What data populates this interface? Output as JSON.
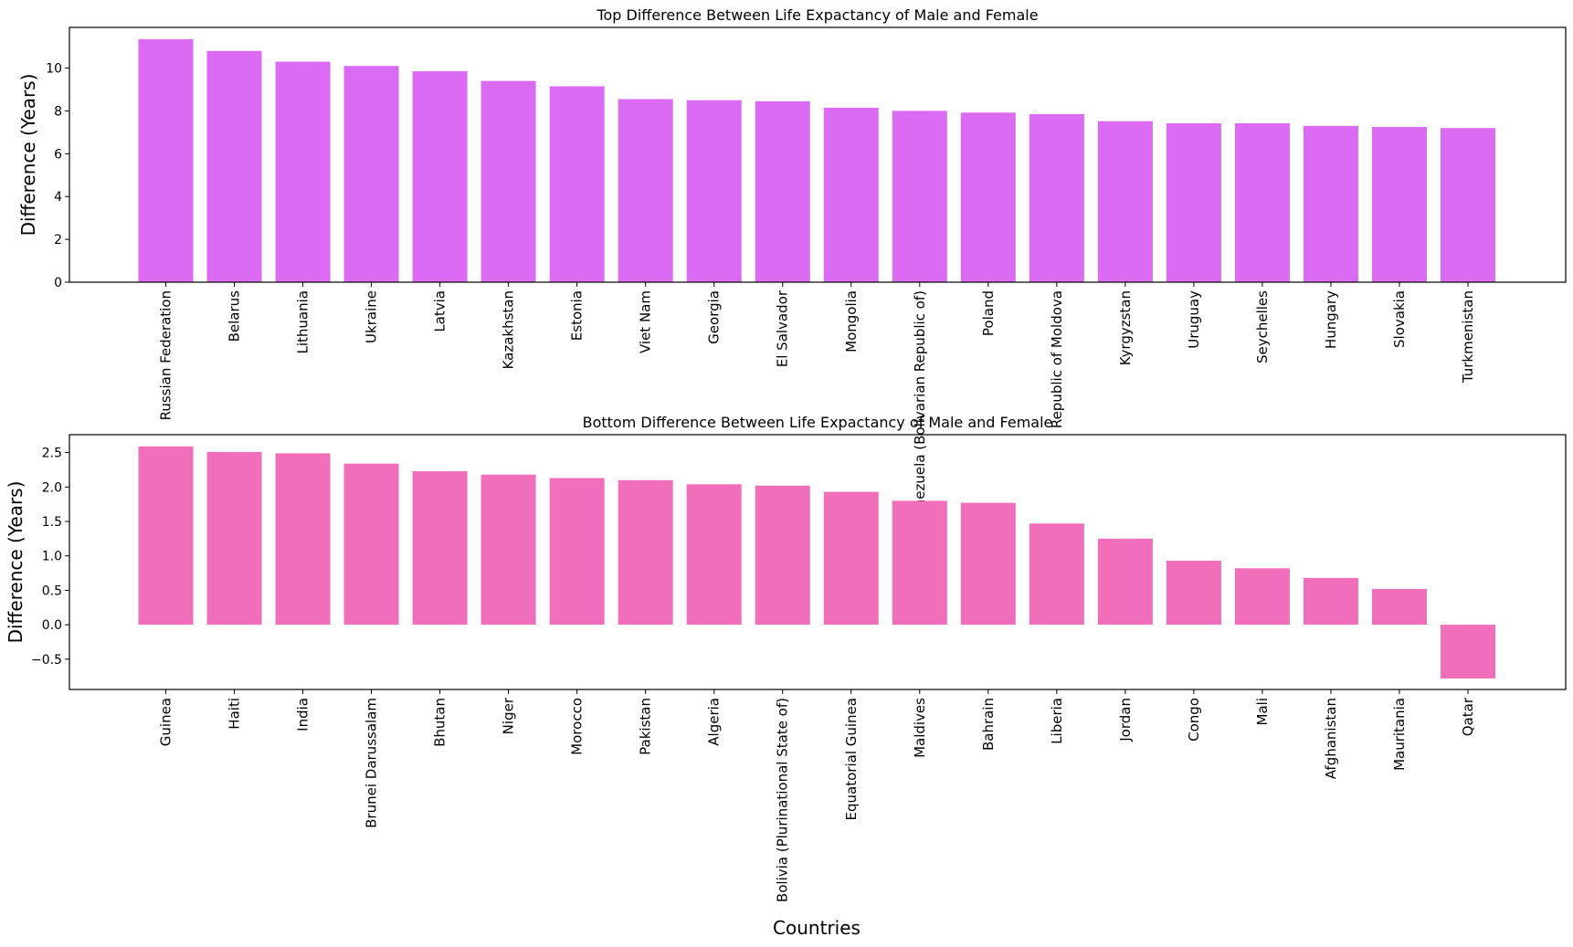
{
  "figure": {
    "xlabel": "Countries",
    "colors": {
      "top_bars": "#da6bf2",
      "bottom_bars": "#f16eba",
      "axes": "#000000"
    }
  },
  "chart_data": [
    {
      "type": "bar",
      "title": "Top Difference Between Life Expactancy of Male and Female",
      "xlabel": "",
      "ylabel": "Difference (Years)",
      "ylim": [
        0,
        11.9
      ],
      "yticks": [
        0,
        2,
        4,
        6,
        8,
        10
      ],
      "ytick_labels": [
        "0",
        "2",
        "4",
        "6",
        "8",
        "10"
      ],
      "grid": false,
      "categories": [
        "Russian Federation",
        "Belarus",
        "Lithuania",
        "Ukraine",
        "Latvia",
        "Kazakhstan",
        "Estonia",
        "Viet Nam",
        "Georgia",
        "El Salvador",
        "Mongolia",
        "Venezuela (Bolivarian Republic of)",
        "Poland",
        "Republic of Moldova",
        "Kyrgyzstan",
        "Uruguay",
        "Seychelles",
        "Hungary",
        "Slovakia",
        "Turkmenistan"
      ],
      "values": [
        11.35,
        10.8,
        10.3,
        10.1,
        9.85,
        9.4,
        9.15,
        8.55,
        8.5,
        8.45,
        8.15,
        8.0,
        7.92,
        7.85,
        7.52,
        7.42,
        7.42,
        7.3,
        7.25,
        7.2
      ]
    },
    {
      "type": "bar",
      "title": "Bottom Difference Between Life Expactancy of Male and Female",
      "xlabel": "Countries",
      "ylabel": "Difference (Years)",
      "ylim": [
        -0.94,
        2.76
      ],
      "yticks": [
        -0.5,
        0,
        0.5,
        1,
        1.5,
        2,
        2.5
      ],
      "ytick_labels": [
        "−0.5",
        "0.0",
        "0.5",
        "1.0",
        "1.5",
        "2.0",
        "2.5"
      ],
      "grid": false,
      "categories": [
        "Guinea",
        "Haiti",
        "India",
        "Brunei Darussalam",
        "Bhutan",
        "Niger",
        "Morocco",
        "Pakistan",
        "Algeria",
        "Bolivia (Plurinational State of)",
        "Equatorial Guinea",
        "Maldives",
        "Bahrain",
        "Liberia",
        "Jordan",
        "Congo",
        "Mali",
        "Afghanistan",
        "Mauritania",
        "Qatar"
      ],
      "values": [
        2.59,
        2.51,
        2.49,
        2.34,
        2.23,
        2.18,
        2.13,
        2.1,
        2.04,
        2.02,
        1.93,
        1.8,
        1.77,
        1.47,
        1.25,
        0.93,
        0.82,
        0.68,
        0.52,
        -0.78
      ]
    }
  ]
}
